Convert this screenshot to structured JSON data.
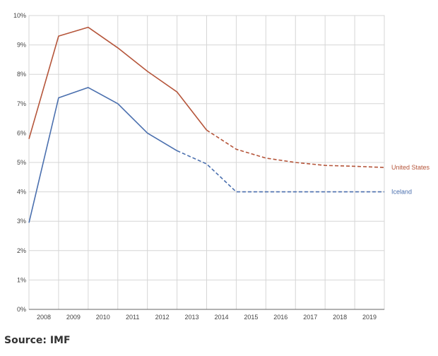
{
  "source": "Source: IMF",
  "colors": {
    "united_states": "#b5553a",
    "iceland": "#4a6fae",
    "grid": "#d6d6d6",
    "axis": "#666666"
  },
  "chart_data": {
    "type": "line",
    "title": "",
    "xlabel": "",
    "ylabel": "",
    "x": [
      2007.5,
      2008,
      2009,
      2010,
      2011,
      2012,
      2013,
      2014,
      2015,
      2016,
      2017,
      2018,
      2019
    ],
    "ylim": [
      0,
      10
    ],
    "xlim": [
      2007.5,
      2019.5
    ],
    "y_ticks": [
      "0%",
      "1%",
      "2%",
      "3%",
      "4%",
      "5%",
      "6%",
      "7%",
      "8%",
      "9%",
      "10%"
    ],
    "x_ticks": [
      "2008",
      "2009",
      "2010",
      "2011",
      "2012",
      "2013",
      "2014",
      "2015",
      "2016",
      "2017",
      "2018",
      "2019"
    ],
    "grid": true,
    "series": [
      {
        "name": "United States",
        "color": "#b5553a",
        "points": [
          [
            2007.5,
            5.8
          ],
          [
            2008.5,
            9.3
          ],
          [
            2009.5,
            9.6
          ],
          [
            2010.5,
            8.9
          ],
          [
            2011.5,
            8.1
          ],
          [
            2012.5,
            7.4
          ],
          [
            2013.5,
            6.1
          ],
          [
            2014.5,
            5.45
          ],
          [
            2015.5,
            5.15
          ],
          [
            2016.5,
            5.0
          ],
          [
            2017.5,
            4.9
          ],
          [
            2018.5,
            4.87
          ],
          [
            2019.5,
            4.83
          ]
        ],
        "projection_from": 2013.5
      },
      {
        "name": "Iceland",
        "color": "#4a6fae",
        "points": [
          [
            2007.5,
            2.95
          ],
          [
            2008.5,
            7.2
          ],
          [
            2009.5,
            7.55
          ],
          [
            2010.5,
            7.0
          ],
          [
            2011.5,
            6.0
          ],
          [
            2012.5,
            5.4
          ],
          [
            2013.5,
            4.95
          ],
          [
            2014.5,
            4.0
          ],
          [
            2015.5,
            4.0
          ],
          [
            2016.5,
            4.0
          ],
          [
            2017.5,
            4.0
          ],
          [
            2018.5,
            4.0
          ],
          [
            2019.5,
            4.0
          ]
        ],
        "projection_from": 2012.5
      }
    ]
  }
}
